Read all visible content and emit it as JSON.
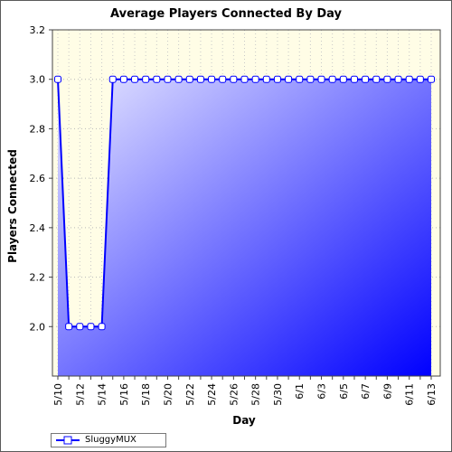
{
  "chart_data": {
    "type": "area",
    "title": "Average Players Connected By Day",
    "xlabel": "Day",
    "ylabel": "Players Connected",
    "ylim": [
      1.8,
      3.2
    ],
    "yticks": [
      "2.0",
      "2.2",
      "2.4",
      "2.6",
      "2.8",
      "3.0",
      "3.2"
    ],
    "grid": true,
    "legend_position": "bottom-left",
    "x": [
      "5/10",
      "5/11",
      "5/12",
      "5/13",
      "5/14",
      "5/15",
      "5/16",
      "5/17",
      "5/18",
      "5/19",
      "5/20",
      "5/21",
      "5/22",
      "5/23",
      "5/24",
      "5/25",
      "5/26",
      "5/27",
      "5/28",
      "5/29",
      "5/30",
      "5/31",
      "6/1",
      "6/2",
      "6/3",
      "6/4",
      "6/5",
      "6/6",
      "6/7",
      "6/8",
      "6/9",
      "6/10",
      "6/11",
      "6/12",
      "6/13"
    ],
    "xticks": [
      "5/10",
      "5/12",
      "5/14",
      "5/16",
      "5/18",
      "5/20",
      "5/22",
      "5/24",
      "5/26",
      "5/28",
      "5/30",
      "6/1",
      "6/3",
      "6/5",
      "6/7",
      "6/9",
      "6/11",
      "6/13"
    ],
    "series": [
      {
        "name": "SluggyMUX",
        "values": [
          3.0,
          2.0,
          2.0,
          2.0,
          2.0,
          3.0,
          3.0,
          3.0,
          3.0,
          3.0,
          3.0,
          3.0,
          3.0,
          3.0,
          3.0,
          3.0,
          3.0,
          3.0,
          3.0,
          3.0,
          3.0,
          3.0,
          3.0,
          3.0,
          3.0,
          3.0,
          3.0,
          3.0,
          3.0,
          3.0,
          3.0,
          3.0,
          3.0,
          3.0,
          3.0
        ]
      }
    ],
    "colors": {
      "plot_background": "#fffde6",
      "area_start": "#e8e8ff",
      "area_end": "#0000ff",
      "line": "#0000ff",
      "marker_fill": "#ffffff"
    }
  }
}
